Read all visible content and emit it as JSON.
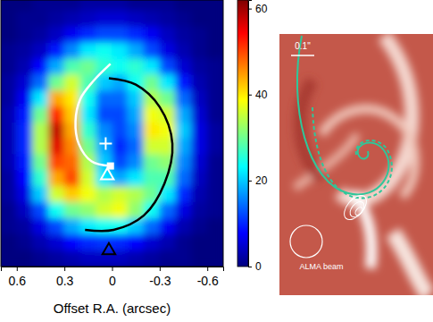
{
  "chart_data": [
    {
      "type": "heatmap",
      "x_label": "Offset R.A. (arcsec)",
      "xlim": [
        0.7,
        -0.7
      ],
      "xticks": [
        0.6,
        0.3,
        0,
        -0.3,
        -0.6
      ],
      "ylim": [
        -0.75,
        0.92
      ],
      "tick_labels": "x",
      "x": [
        0.65,
        0.55,
        0.45,
        0.35,
        0.25,
        0.15,
        0.05,
        -0.05,
        -0.15,
        -0.25,
        -0.35,
        -0.45,
        -0.55,
        -0.65
      ],
      "y": [
        0.9,
        0.8,
        0.7,
        0.6,
        0.5,
        0.4,
        0.3,
        0.2,
        0.1,
        0.0,
        -0.1,
        -0.2,
        -0.3,
        -0.4,
        -0.5,
        -0.6,
        -0.7
      ],
      "z": [
        [
          0,
          0,
          1,
          1,
          1,
          2,
          2,
          2,
          1,
          1,
          1,
          0,
          0,
          0
        ],
        [
          0,
          1,
          1,
          2,
          3,
          4,
          5,
          5,
          4,
          3,
          2,
          1,
          0,
          0
        ],
        [
          0,
          1,
          2,
          4,
          7,
          10,
          12,
          12,
          10,
          7,
          4,
          2,
          1,
          0
        ],
        [
          1,
          2,
          4,
          9,
          16,
          22,
          24,
          22,
          18,
          12,
          6,
          3,
          1,
          0
        ],
        [
          1,
          3,
          8,
          18,
          28,
          30,
          26,
          24,
          26,
          22,
          12,
          5,
          2,
          1
        ],
        [
          2,
          5,
          14,
          30,
          36,
          28,
          20,
          18,
          24,
          30,
          22,
          9,
          3,
          1
        ],
        [
          2,
          7,
          22,
          44,
          40,
          24,
          14,
          14,
          20,
          34,
          30,
          14,
          4,
          1
        ],
        [
          3,
          9,
          30,
          52,
          42,
          22,
          12,
          12,
          18,
          38,
          36,
          18,
          5,
          1
        ],
        [
          3,
          10,
          34,
          58,
          44,
          26,
          16,
          12,
          16,
          40,
          38,
          20,
          6,
          2
        ],
        [
          3,
          10,
          34,
          56,
          46,
          30,
          18,
          10,
          14,
          36,
          36,
          18,
          6,
          2
        ],
        [
          3,
          9,
          30,
          50,
          48,
          34,
          20,
          12,
          16,
          30,
          32,
          16,
          5,
          1
        ],
        [
          2,
          8,
          26,
          44,
          50,
          36,
          22,
          18,
          22,
          28,
          28,
          14,
          4,
          1
        ],
        [
          2,
          6,
          20,
          36,
          42,
          38,
          34,
          36,
          34,
          30,
          22,
          10,
          3,
          1
        ],
        [
          1,
          4,
          12,
          24,
          30,
          32,
          36,
          38,
          32,
          24,
          14,
          6,
          2,
          1
        ],
        [
          1,
          2,
          6,
          12,
          18,
          22,
          24,
          24,
          20,
          14,
          7,
          3,
          1,
          0
        ],
        [
          0,
          1,
          3,
          5,
          8,
          10,
          11,
          10,
          8,
          5,
          3,
          1,
          0,
          0
        ],
        [
          0,
          0,
          1,
          2,
          3,
          4,
          4,
          4,
          3,
          2,
          1,
          1,
          0,
          0
        ]
      ],
      "clim": [
        0,
        62
      ],
      "cticks": [
        0,
        20,
        40,
        60
      ],
      "overlays": [
        {
          "type": "line",
          "color": "#ffffff",
          "x": [
            0.01,
            0.13,
            0.21,
            0.23,
            0.2,
            0.12,
            0.01
          ],
          "y": [
            -0.12,
            -0.09,
            0.02,
            0.16,
            0.3,
            0.41,
            0.52
          ]
        },
        {
          "type": "line",
          "color": "#000000",
          "x": [
            0.02,
            -0.15,
            -0.3,
            -0.38,
            -0.33,
            -0.2,
            -0.01,
            0.17
          ],
          "y": [
            0.43,
            0.39,
            0.25,
            0.02,
            -0.23,
            -0.43,
            -0.52,
            -0.52
          ]
        }
      ],
      "markers": [
        {
          "marker": "plus",
          "color": "#ffffff",
          "x": 0.04,
          "y": 0.02
        },
        {
          "marker": "square",
          "color": "#ffffff",
          "x": 0.01,
          "y": -0.12
        },
        {
          "marker": "triangle",
          "color": "#ffffff",
          "x": 0.03,
          "y": -0.18
        },
        {
          "marker": "triangle",
          "color": "#000000",
          "x": 0.02,
          "y": -0.65
        }
      ]
    },
    {
      "type": "image",
      "scale_label": "0.1\"",
      "beam_label": "ALMA beam"
    }
  ]
}
